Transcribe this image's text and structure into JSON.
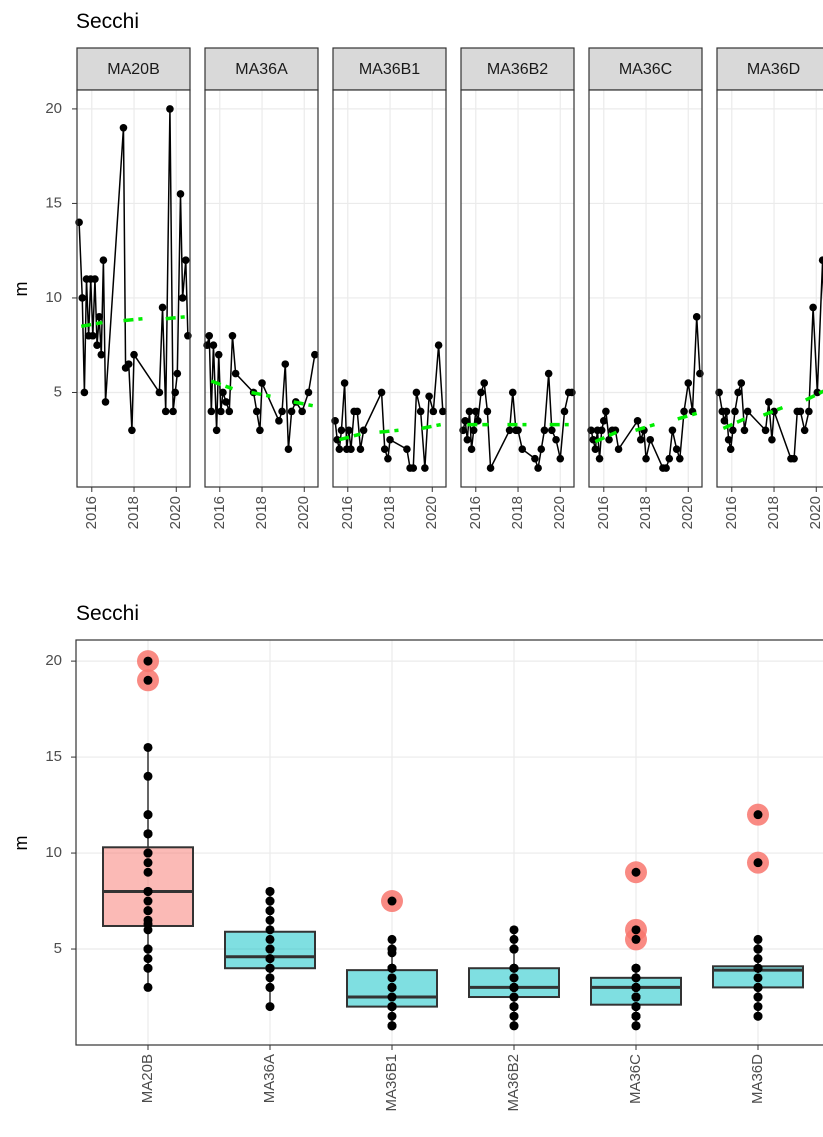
{
  "chart_data": [
    {
      "type": "line",
      "title": "Secchi",
      "ylabel": "m",
      "xlim": [
        2015.3,
        2020.65
      ],
      "xticks": [
        2016,
        2018,
        2020
      ],
      "ylim": [
        0,
        21
      ],
      "yticks": [
        5,
        10,
        15,
        20
      ],
      "grid": true,
      "line_color": "#000000",
      "trend_color": "#00ee00",
      "facets": [
        {
          "name": "MA20B",
          "x": [
            2015.4,
            2015.55,
            2015.65,
            2015.75,
            2015.85,
            2015.95,
            2016.05,
            2016.15,
            2016.25,
            2016.35,
            2016.45,
            2016.55,
            2016.65,
            2017.5,
            2017.6,
            2017.75,
            2017.9,
            2018.0,
            2019.2,
            2019.35,
            2019.5,
            2019.7,
            2019.85,
            2019.95,
            2020.05,
            2020.2,
            2020.3,
            2020.45,
            2020.55
          ],
          "values": [
            14,
            10,
            5,
            11,
            8,
            11,
            8,
            11,
            7.5,
            9,
            7,
            12,
            4.5,
            19,
            6.3,
            6.5,
            3,
            7,
            5,
            9.5,
            4,
            20,
            4,
            5,
            6,
            15.5,
            10,
            12,
            8
          ],
          "trend": [
            {
              "x": [
                2015.5,
                2016.5
              ],
              "values": [
                8.5,
                8.7
              ]
            },
            {
              "x": [
                2017.5,
                2018.4
              ],
              "values": [
                8.8,
                8.9
              ]
            },
            {
              "x": [
                2019.5,
                2020.4
              ],
              "values": [
                8.9,
                9.0
              ]
            }
          ]
        },
        {
          "name": "MA36A",
          "x": [
            2015.4,
            2015.5,
            2015.6,
            2015.7,
            2015.85,
            2015.95,
            2016.05,
            2016.15,
            2016.3,
            2016.45,
            2016.6,
            2016.75,
            2017.6,
            2017.75,
            2017.9,
            2018.0,
            2018.8,
            2018.95,
            2019.1,
            2019.25,
            2019.4,
            2019.6,
            2019.9,
            2020.2,
            2020.5
          ],
          "values": [
            7.5,
            8,
            4,
            7.5,
            3,
            7,
            4,
            5,
            4.5,
            4,
            8,
            6,
            5,
            4,
            3,
            5.5,
            3.5,
            4,
            6.5,
            2,
            4,
            4.5,
            4,
            5,
            7
          ],
          "trend": [
            {
              "x": [
                2015.6,
                2016.6
              ],
              "values": [
                5.6,
                5.2
              ]
            },
            {
              "x": [
                2017.5,
                2018.4
              ],
              "values": [
                5,
                4.8
              ]
            },
            {
              "x": [
                2019.5,
                2020.4
              ],
              "values": [
                4.5,
                4.3
              ]
            }
          ]
        },
        {
          "name": "MA36B1",
          "x": [
            2015.4,
            2015.5,
            2015.6,
            2015.7,
            2015.85,
            2015.95,
            2016.05,
            2016.15,
            2016.3,
            2016.45,
            2016.6,
            2016.75,
            2017.6,
            2017.75,
            2017.9,
            2018.0,
            2018.8,
            2018.95,
            2019.1,
            2019.25,
            2019.45,
            2019.65,
            2019.85,
            2020.05,
            2020.3,
            2020.5
          ],
          "values": [
            3.5,
            2.5,
            2,
            3,
            5.5,
            2,
            3,
            2,
            4,
            4,
            2,
            3,
            5,
            2,
            1.5,
            2.5,
            2,
            1,
            1,
            5,
            4,
            1,
            4.8,
            4,
            7.5,
            4
          ],
          "trend": [
            {
              "x": [
                2015.6,
                2016.6
              ],
              "values": [
                2.5,
                2.8
              ]
            },
            {
              "x": [
                2017.5,
                2018.4
              ],
              "values": [
                2.9,
                3
              ]
            },
            {
              "x": [
                2019.5,
                2020.4
              ],
              "values": [
                3.1,
                3.3
              ]
            }
          ]
        },
        {
          "name": "MA36B2",
          "x": [
            2015.4,
            2015.5,
            2015.6,
            2015.7,
            2015.8,
            2015.9,
            2016.0,
            2016.1,
            2016.25,
            2016.4,
            2016.55,
            2016.7,
            2017.6,
            2017.75,
            2017.9,
            2018.0,
            2018.2,
            2018.8,
            2018.95,
            2019.1,
            2019.25,
            2019.45,
            2019.6,
            2019.8,
            2020.0,
            2020.2,
            2020.4,
            2020.55
          ],
          "values": [
            3,
            3.5,
            2.5,
            4,
            2,
            3,
            4,
            3.5,
            5,
            5.5,
            4,
            1,
            3,
            5,
            3,
            3,
            2,
            1.5,
            1,
            2,
            3,
            6,
            3,
            2.5,
            1.5,
            4,
            5,
            5
          ],
          "trend": [
            {
              "x": [
                2015.6,
                2016.6
              ],
              "values": [
                3.3,
                3.3
              ]
            },
            {
              "x": [
                2017.5,
                2018.4
              ],
              "values": [
                3.3,
                3.3
              ]
            },
            {
              "x": [
                2019.5,
                2020.4
              ],
              "values": [
                3.3,
                3.3
              ]
            }
          ]
        },
        {
          "name": "MA36C",
          "x": [
            2015.4,
            2015.5,
            2015.6,
            2015.7,
            2015.8,
            2015.9,
            2016.0,
            2016.1,
            2016.25,
            2016.4,
            2016.55,
            2016.7,
            2017.6,
            2017.75,
            2017.9,
            2018.0,
            2018.2,
            2018.8,
            2018.95,
            2019.1,
            2019.25,
            2019.45,
            2019.6,
            2019.8,
            2020.0,
            2020.2,
            2020.4,
            2020.55
          ],
          "values": [
            3,
            2.5,
            2,
            3,
            1.5,
            3,
            3.5,
            4,
            2.5,
            3,
            3,
            2,
            3.5,
            2.5,
            3,
            1.5,
            2.5,
            1,
            1,
            1.5,
            3,
            2,
            1.5,
            4,
            5.5,
            4,
            9,
            6
          ],
          "trend": [
            {
              "x": [
                2015.6,
                2016.6
              ],
              "values": [
                2.4,
                2.9
              ]
            },
            {
              "x": [
                2017.5,
                2018.4
              ],
              "values": [
                3,
                3.3
              ]
            },
            {
              "x": [
                2019.5,
                2020.4
              ],
              "values": [
                3.6,
                3.9
              ]
            }
          ]
        },
        {
          "name": "MA36D",
          "x": [
            2015.4,
            2015.55,
            2015.65,
            2015.75,
            2015.85,
            2015.95,
            2016.05,
            2016.15,
            2016.3,
            2016.45,
            2016.6,
            2016.75,
            2017.6,
            2017.75,
            2017.9,
            2018.0,
            2018.8,
            2018.95,
            2019.1,
            2019.25,
            2019.45,
            2019.65,
            2019.85,
            2020.05,
            2020.3,
            2020.5
          ],
          "values": [
            5,
            4,
            3.5,
            4,
            2.5,
            2,
            3,
            4,
            5,
            5.5,
            3,
            4,
            3,
            4.5,
            2.5,
            4,
            1.5,
            1.5,
            4,
            4,
            3,
            4,
            9.5,
            5,
            12,
            4
          ],
          "trend": [
            {
              "x": [
                2015.6,
                2016.6
              ],
              "values": [
                3.1,
                3.6
              ]
            },
            {
              "x": [
                2017.5,
                2018.4
              ],
              "values": [
                3.8,
                4.2
              ]
            },
            {
              "x": [
                2019.5,
                2020.4
              ],
              "values": [
                4.6,
                5.1
              ]
            }
          ]
        }
      ]
    },
    {
      "type": "box",
      "title": "Secchi",
      "ylabel": "m",
      "ylim": [
        0,
        21.1
      ],
      "yticks": [
        5,
        10,
        15,
        20
      ],
      "grid": true,
      "categories": [
        "MA20B",
        "MA36A",
        "MA36B1",
        "MA36B2",
        "MA36C",
        "MA36D"
      ],
      "colors": [
        "#f8766d",
        "#00bfc4",
        "#00bfc4",
        "#00bfc4",
        "#00bfc4",
        "#00bfc4"
      ],
      "outlier_color": "#f8766d",
      "boxes": [
        {
          "whisker_low": 3,
          "q1": 6.2,
          "median": 8,
          "q3": 10.3,
          "whisker_high": 15.5,
          "outliers": [
            19,
            20
          ]
        },
        {
          "whisker_low": 2,
          "q1": 4,
          "median": 4.6,
          "q3": 5.9,
          "whisker_high": 8,
          "outliers": []
        },
        {
          "whisker_low": 1,
          "q1": 2,
          "median": 2.5,
          "q3": 3.9,
          "whisker_high": 5.5,
          "outliers": [
            7.5
          ]
        },
        {
          "whisker_low": 1,
          "q1": 2.5,
          "median": 3,
          "q3": 4,
          "whisker_high": 6,
          "outliers": []
        },
        {
          "whisker_low": 1,
          "q1": 2.1,
          "median": 3,
          "q3": 3.5,
          "whisker_high": 4,
          "outliers": [
            5.5,
            6,
            9
          ]
        },
        {
          "whisker_low": 1.5,
          "q1": 3,
          "median": 3.9,
          "q3": 4.1,
          "whisker_high": 5.5,
          "outliers": [
            9.5,
            12
          ]
        }
      ]
    }
  ]
}
